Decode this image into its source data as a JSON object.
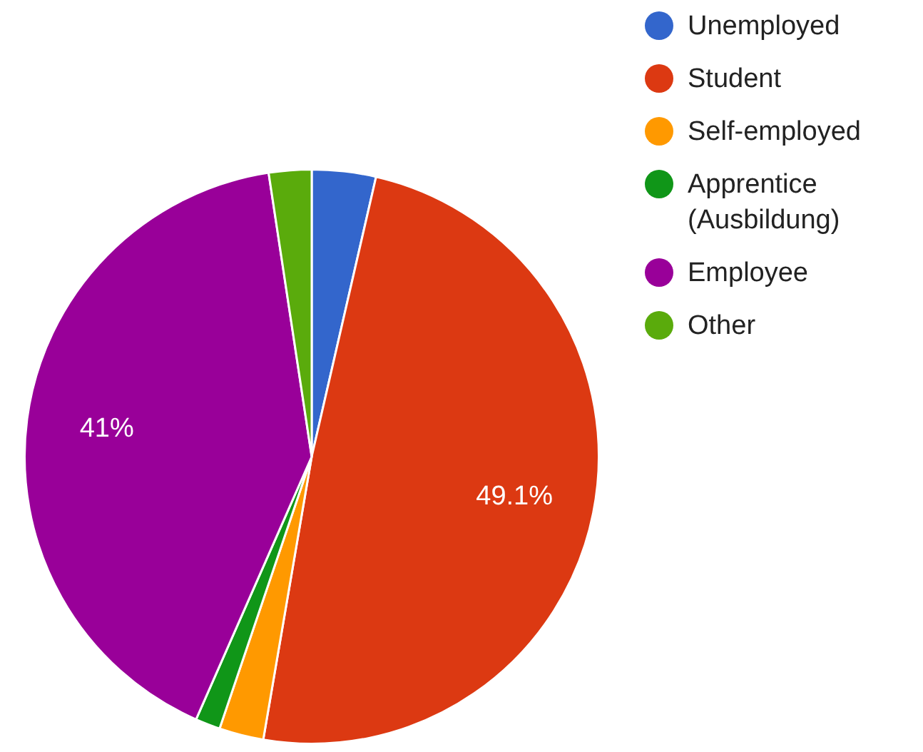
{
  "chart_data": {
    "type": "pie",
    "categories": [
      "Unemployed",
      "Student",
      "Self-employed",
      "Apprentice (Ausbildung)",
      "Employee",
      "Other"
    ],
    "values": [
      3.6,
      49.1,
      2.5,
      1.4,
      41,
      2.4
    ],
    "colors": [
      "#3366cc",
      "#dc3912",
      "#ff9900",
      "#109618",
      "#990099",
      "#5aab0c"
    ],
    "value_labels": [
      null,
      "49.1%",
      null,
      null,
      "41%",
      null
    ],
    "legend": "top right"
  }
}
